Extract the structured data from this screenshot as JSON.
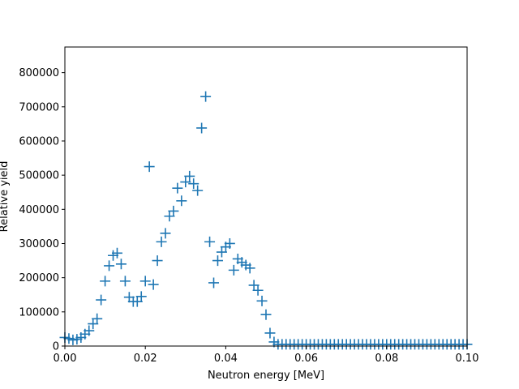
{
  "chart_data": {
    "type": "scatter",
    "title": "",
    "xlabel": "Neutron energy [MeV]",
    "ylabel": "Relative yield",
    "xlim": [
      0.0,
      0.1
    ],
    "ylim": [
      0,
      875000
    ],
    "grid": false,
    "marker": "+",
    "color": "#1f77b4",
    "xticks": [
      0.0,
      0.02,
      0.04,
      0.06,
      0.08,
      0.1
    ],
    "xtick_labels": [
      "0.00",
      "0.02",
      "0.04",
      "0.06",
      "0.08",
      "0.10"
    ],
    "yticks": [
      0,
      100000,
      200000,
      300000,
      400000,
      500000,
      600000,
      700000,
      800000
    ],
    "ytick_labels": [
      "0",
      "100000",
      "200000",
      "300000",
      "400000",
      "500000",
      "600000",
      "700000",
      "800000"
    ],
    "series": [
      {
        "x": [
          0.0,
          0.001,
          0.002,
          0.003,
          0.004,
          0.005,
          0.006,
          0.007,
          0.008,
          0.009,
          0.01,
          0.011,
          0.012,
          0.013,
          0.014,
          0.015,
          0.016,
          0.017,
          0.018,
          0.019,
          0.02,
          0.021,
          0.022,
          0.023,
          0.024,
          0.025,
          0.026,
          0.027,
          0.028,
          0.029,
          0.03,
          0.031,
          0.032,
          0.033,
          0.034,
          0.035,
          0.036,
          0.037,
          0.038,
          0.039,
          0.04,
          0.041,
          0.042,
          0.043,
          0.044,
          0.045,
          0.046,
          0.047,
          0.048,
          0.049,
          0.05,
          0.051,
          0.052,
          0.053,
          0.054,
          0.055,
          0.056,
          0.057,
          0.058,
          0.059,
          0.06,
          0.061,
          0.062,
          0.063,
          0.064,
          0.065,
          0.066,
          0.067,
          0.068,
          0.069,
          0.07,
          0.071,
          0.072,
          0.073,
          0.074,
          0.075,
          0.076,
          0.077,
          0.078,
          0.079,
          0.08,
          0.081,
          0.082,
          0.083,
          0.084,
          0.085,
          0.086,
          0.087,
          0.088,
          0.089,
          0.09,
          0.091,
          0.092,
          0.093,
          0.094,
          0.095,
          0.096,
          0.097,
          0.098,
          0.099,
          0.1
        ],
        "y": [
          25000,
          22000,
          18000,
          20000,
          25000,
          35000,
          45000,
          65000,
          80000,
          135000,
          190000,
          235000,
          265000,
          272000,
          240000,
          190000,
          143000,
          130000,
          130000,
          145000,
          190000,
          525000,
          180000,
          250000,
          305000,
          330000,
          380000,
          395000,
          462000,
          425000,
          480000,
          497000,
          475000,
          455000,
          638000,
          730000,
          305000,
          185000,
          250000,
          275000,
          290000,
          300000,
          222000,
          255000,
          245000,
          237000,
          228000,
          178000,
          163000,
          132000,
          92000,
          38000,
          12000,
          5000,
          5000,
          5000,
          5000,
          5000,
          5000,
          5000,
          5000,
          5000,
          5000,
          5000,
          5000,
          5000,
          5000,
          5000,
          5000,
          5000,
          5000,
          5000,
          5000,
          5000,
          5000,
          5000,
          5000,
          5000,
          5000,
          5000,
          5000,
          5000,
          5000,
          5000,
          5000,
          5000,
          5000,
          5000,
          5000,
          5000,
          5000,
          5000,
          5000,
          5000,
          5000,
          5000,
          5000,
          5000,
          5000,
          5000,
          5000
        ]
      }
    ]
  }
}
